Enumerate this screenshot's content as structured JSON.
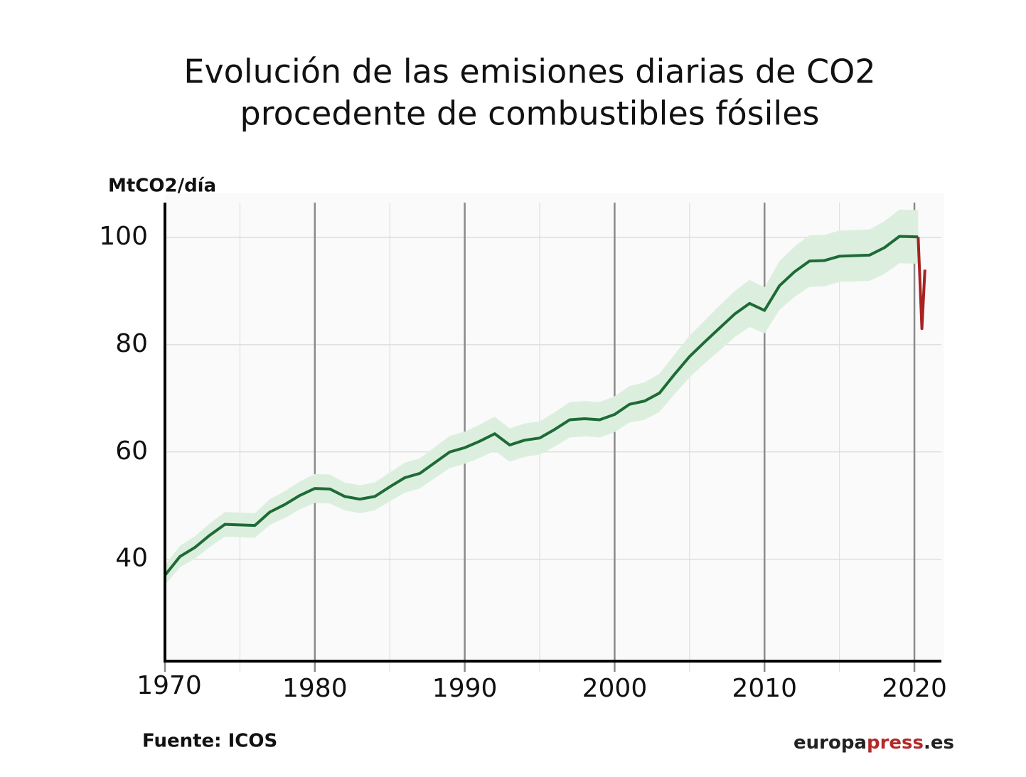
{
  "chart_data": {
    "type": "line",
    "title": [
      "Evolución de las emisiones diarias de CO2",
      "procedente de combustibles fósiles"
    ],
    "y_label": "MtCO2/día",
    "source": "Fuente: ICOS",
    "brand": [
      "europa",
      "press",
      ".es"
    ],
    "brand_colors": [
      "#222222",
      "#b22a2a",
      "#222222"
    ],
    "xlim": [
      1970,
      2021.8
    ],
    "ylim": [
      21,
      106.5
    ],
    "xticks": [
      1970,
      1980,
      1990,
      2000,
      2010,
      2020
    ],
    "x_minor_ticks": [
      1975,
      1985,
      1995,
      2005,
      2015
    ],
    "yticks": [
      40,
      60,
      80,
      100
    ],
    "grid": true,
    "band": {
      "color": "#dcefdf",
      "x": [
        1970,
        1971,
        1972,
        1973,
        1974,
        1975,
        1976,
        1977,
        1978,
        1979,
        1980,
        1981,
        1982,
        1983,
        1984,
        1985,
        1986,
        1987,
        1988,
        1989,
        1990,
        1991,
        1992,
        1993,
        1994,
        1995,
        1996,
        1997,
        1998,
        1999,
        2000,
        2001,
        2002,
        2003,
        2004,
        2005,
        2006,
        2007,
        2008,
        2009,
        2010,
        2011,
        2012,
        2013,
        2014,
        2015,
        2016,
        2017,
        2018,
        2019,
        2020.25
      ],
      "lower": [
        35.2,
        38.5,
        40.1,
        42.3,
        44.2,
        44.1,
        44.0,
        46.4,
        47.7,
        49.3,
        50.5,
        50.4,
        49.1,
        48.6,
        49.1,
        50.8,
        52.4,
        53.2,
        55.1,
        57.0,
        57.8,
        58.9,
        60.2,
        58.2,
        59.1,
        59.5,
        61.0,
        62.7,
        62.9,
        62.7,
        63.7,
        65.5,
        66.0,
        67.5,
        70.8,
        73.9,
        76.5,
        78.9,
        81.4,
        83.3,
        82.1,
        86.5,
        88.9,
        90.8,
        90.9,
        91.7,
        91.8,
        91.9,
        93.2,
        95.2,
        95.1
      ],
      "upper": [
        38.9,
        42.5,
        44.3,
        46.7,
        48.8,
        48.7,
        48.6,
        51.2,
        52.7,
        54.5,
        55.9,
        55.8,
        54.3,
        53.8,
        54.3,
        56.2,
        58.0,
        58.8,
        60.9,
        63.0,
        63.8,
        65.1,
        66.6,
        64.4,
        65.3,
        65.7,
        67.4,
        69.3,
        69.5,
        69.3,
        70.4,
        72.3,
        73.0,
        74.6,
        78.2,
        81.7,
        84.5,
        87.3,
        90.0,
        92.1,
        90.7,
        95.6,
        98.3,
        100.4,
        100.5,
        101.3,
        101.4,
        101.5,
        103.0,
        105.2,
        105.1
      ]
    },
    "series": [
      {
        "color": "#1e6b35",
        "x": [
          1970,
          1971,
          1972,
          1973,
          1974,
          1975,
          1976,
          1977,
          1978,
          1979,
          1980,
          1981,
          1982,
          1983,
          1984,
          1985,
          1986,
          1987,
          1988,
          1989,
          1990,
          1991,
          1992,
          1993,
          1994,
          1995,
          1996,
          1997,
          1998,
          1999,
          2000,
          2001,
          2002,
          2003,
          2004,
          2005,
          2006,
          2007,
          2008,
          2009,
          2010,
          2011,
          2012,
          2013,
          2014,
          2015,
          2016,
          2017,
          2018,
          2019,
          2020.25
        ],
        "values": [
          37,
          40.5,
          42.2,
          44.5,
          46.5,
          46.4,
          46.3,
          48.8,
          50.2,
          51.9,
          53.2,
          53.1,
          51.7,
          51.2,
          51.7,
          53.5,
          55.2,
          56,
          58,
          60,
          60.8,
          62,
          63.4,
          61.3,
          62.2,
          62.6,
          64.2,
          66,
          66.2,
          66,
          67,
          68.9,
          69.5,
          71,
          74.5,
          77.8,
          80.5,
          83.1,
          85.7,
          87.7,
          86.4,
          91,
          93.6,
          95.6,
          95.7,
          96.5,
          96.6,
          96.7,
          98.1,
          100.2,
          100.1
        ]
      },
      {
        "color": "#a82222",
        "x": [
          2020.25,
          2020.5,
          2020.7
        ],
        "values": [
          100.1,
          83,
          94
        ]
      }
    ]
  }
}
